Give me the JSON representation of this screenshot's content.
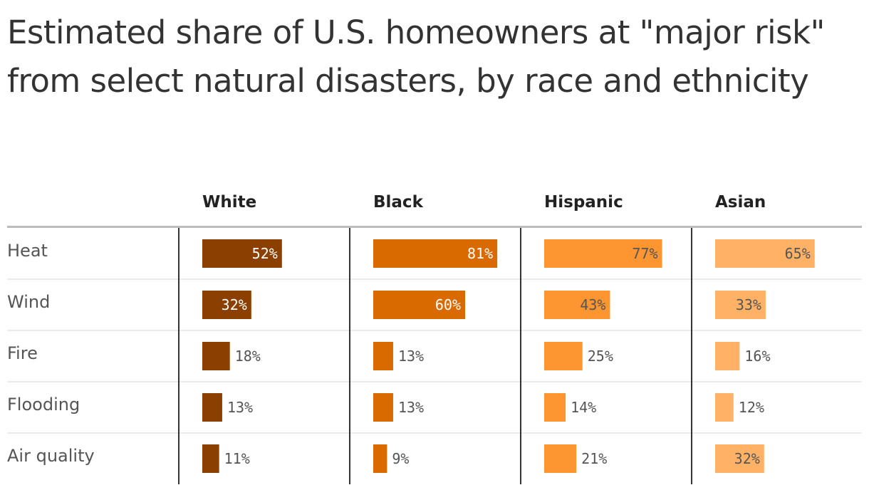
{
  "title": "Estimated share of U.S. homeowners at \"major risk\" from select natural disasters, by race and ethnicity",
  "chart_data": {
    "type": "bar",
    "layout": "small-multiples-horizontal",
    "categories": [
      "Heat",
      "Wind",
      "Fire",
      "Flooding",
      "Air quality"
    ],
    "series": [
      {
        "name": "White",
        "color": "#8b3f00",
        "label_color_inside": "#ffffff",
        "values": [
          52,
          32,
          18,
          13,
          11
        ],
        "labels": [
          "52%",
          "32%",
          "18%",
          "13%",
          "11%"
        ]
      },
      {
        "name": "Black",
        "color": "#d96a00",
        "label_color_inside": "#ffffff",
        "values": [
          81,
          60,
          13,
          13,
          9
        ],
        "labels": [
          "81%",
          "60%",
          "13%",
          "13%",
          "9%"
        ]
      },
      {
        "name": "Hispanic",
        "color": "#fd9630",
        "label_color_inside": "#555555",
        "values": [
          77,
          43,
          25,
          14,
          21
        ],
        "labels": [
          "77%",
          "43%",
          "25%",
          "14%",
          "21%"
        ]
      },
      {
        "name": "Asian",
        "color": "#ffb266",
        "label_color_inside": "#555555",
        "values": [
          65,
          33,
          16,
          12,
          32
        ],
        "labels": [
          "65%",
          "33%",
          "16%",
          "12%",
          "32%"
        ]
      }
    ],
    "xlim": [
      0,
      100
    ],
    "value_unit": "%"
  }
}
